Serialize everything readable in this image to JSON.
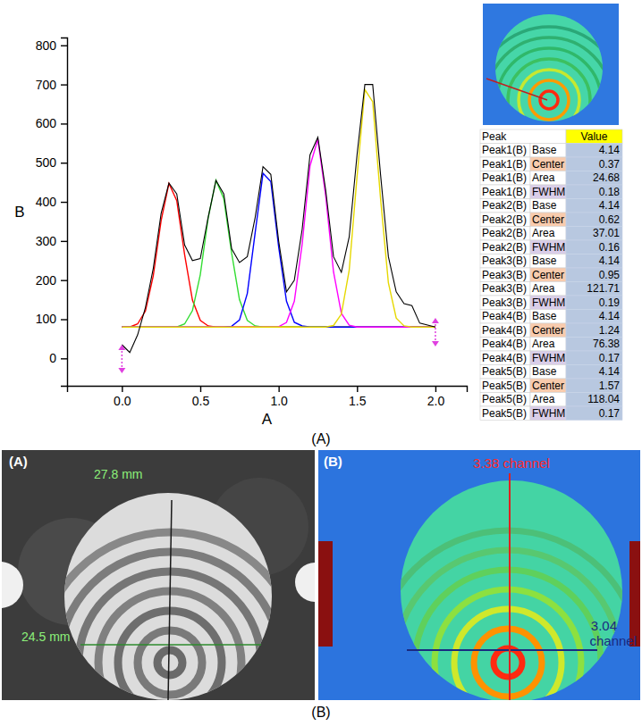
{
  "chart_data": {
    "type": "line",
    "xlabel": "A",
    "ylabel": "B",
    "x": [
      0,
      0.05,
      0.1,
      0.15,
      0.2,
      0.25,
      0.3,
      0.35,
      0.4,
      0.45,
      0.5,
      0.55,
      0.6,
      0.65,
      0.7,
      0.75,
      0.8,
      0.85,
      0.9,
      0.95,
      1.0,
      1.05,
      1.1,
      1.15,
      1.2,
      1.25,
      1.3,
      1.35,
      1.4,
      1.45,
      1.5,
      1.55,
      1.6,
      1.65,
      1.7,
      1.75,
      1.8,
      1.85,
      1.9,
      1.95,
      2.0
    ],
    "series": [
      {
        "color": "#ff0000",
        "line_style": "solid",
        "values": [
          80,
          80,
          88,
          121,
          211,
          352,
          447,
          403,
          265,
          149,
          97,
          83,
          80,
          80,
          80,
          80,
          80,
          80,
          80,
          80,
          80,
          80,
          80,
          80,
          80,
          80,
          80,
          80,
          80,
          80,
          80,
          80,
          80,
          80,
          80,
          80,
          80,
          80,
          80,
          80,
          80
        ]
      },
      {
        "color": "#33dd33",
        "line_style": "solid",
        "values": [
          80,
          80,
          80,
          80,
          80,
          80,
          80,
          80,
          88,
          122,
          214,
          358,
          455,
          408,
          269,
          150,
          97,
          83,
          80,
          80,
          80,
          80,
          80,
          80,
          80,
          80,
          80,
          80,
          80,
          80,
          80,
          80,
          80,
          80,
          80,
          80,
          80,
          80,
          80,
          80,
          80
        ]
      },
      {
        "color": "#0000ff",
        "line_style": "solid",
        "values": [
          80,
          80,
          80,
          80,
          80,
          80,
          80,
          80,
          80,
          80,
          80,
          80,
          80,
          80,
          82,
          98,
          166,
          321,
          473,
          452,
          285,
          146,
          92,
          83,
          80,
          80,
          80,
          80,
          80,
          80,
          80,
          80,
          80,
          80,
          80,
          80,
          80,
          80,
          80,
          80,
          80
        ]
      },
      {
        "color": "#ff00ff",
        "line_style": "solid",
        "values": [
          80,
          80,
          80,
          80,
          80,
          80,
          80,
          80,
          80,
          80,
          80,
          80,
          80,
          80,
          80,
          80,
          80,
          80,
          80,
          80,
          81,
          92,
          146,
          292,
          492,
          560,
          416,
          221,
          115,
          85,
          80,
          80,
          80,
          80,
          80,
          80,
          80,
          80,
          80,
          80,
          80
        ]
      },
      {
        "color": "#e6d800",
        "line_style": "solid",
        "values": [
          80,
          80,
          80,
          80,
          80,
          80,
          80,
          80,
          80,
          80,
          80,
          80,
          80,
          80,
          80,
          80,
          80,
          80,
          80,
          80,
          80,
          80,
          80,
          80,
          80,
          80,
          80,
          84,
          113,
          225,
          464,
          687,
          656,
          409,
          193,
          103,
          83,
          80,
          80,
          80,
          80
        ]
      },
      {
        "color": "#000000",
        "line_style": "solid",
        "values": [
          35,
          15,
          60,
          130,
          230,
          370,
          448,
          420,
          290,
          250,
          255,
          360,
          455,
          420,
          280,
          245,
          260,
          360,
          490,
          470,
          300,
          170,
          200,
          330,
          520,
          565,
          430,
          260,
          220,
          310,
          520,
          700,
          700,
          470,
          260,
          170,
          140,
          135,
          90,
          85,
          80
        ]
      }
    ],
    "xlim": [
      -0.35,
      2.2
    ],
    "xticks": [
      {
        "value": 0,
        "label": "0.0"
      },
      0.5,
      {
        "value": 1,
        "label": "1.0"
      },
      1.5,
      {
        "value": 2,
        "label": "2.0"
      }
    ],
    "ylim": [
      -70,
      820
    ],
    "yticks": [
      0,
      100,
      200,
      300,
      400,
      500,
      600,
      700,
      800
    ],
    "grid": false
  },
  "figure": {
    "captions": [
      "(A)",
      "(B)"
    ]
  },
  "table": {
    "header": [
      "Peak",
      "Value"
    ],
    "rows": [
      [
        "Peak1(B)",
        "Base",
        4.14
      ],
      [
        "Peak1(B)",
        "Center",
        0.37
      ],
      [
        "Peak1(B)",
        "Area",
        24.68
      ],
      [
        "Peak1(B)",
        "FWHM",
        0.18
      ],
      [
        "Peak2(B)",
        "Base",
        4.14
      ],
      [
        "Peak2(B)",
        "Center",
        0.62
      ],
      [
        "Peak2(B)",
        "Area",
        37.01
      ],
      [
        "Peak2(B)",
        "FWHM",
        0.16
      ],
      [
        "Peak3(B)",
        "Base",
        4.14
      ],
      [
        "Peak3(B)",
        "Center",
        0.95
      ],
      [
        "Peak3(B)",
        "Area",
        121.71
      ],
      [
        "Peak3(B)",
        "FWHM",
        0.19
      ],
      [
        "Peak4(B)",
        "Base",
        4.14
      ],
      [
        "Peak4(B)",
        "Center",
        1.24
      ],
      [
        "Peak4(B)",
        "Area",
        76.38
      ],
      [
        "Peak4(B)",
        "FWHM",
        0.17
      ],
      [
        "Peak5(B)",
        "Base",
        4.14
      ],
      [
        "Peak5(B)",
        "Center",
        1.57
      ],
      [
        "Peak5(B)",
        "Area",
        118.04
      ],
      [
        "Peak5(B)",
        "FWHM",
        0.17
      ]
    ]
  },
  "photos": {
    "left": {
      "label": "(A)",
      "height_label": "27.8 mm",
      "width_label": "24.5 mm"
    },
    "right": {
      "label": "(B)",
      "height_label": "3.38 channel",
      "width_label": "3.04 channel"
    }
  }
}
